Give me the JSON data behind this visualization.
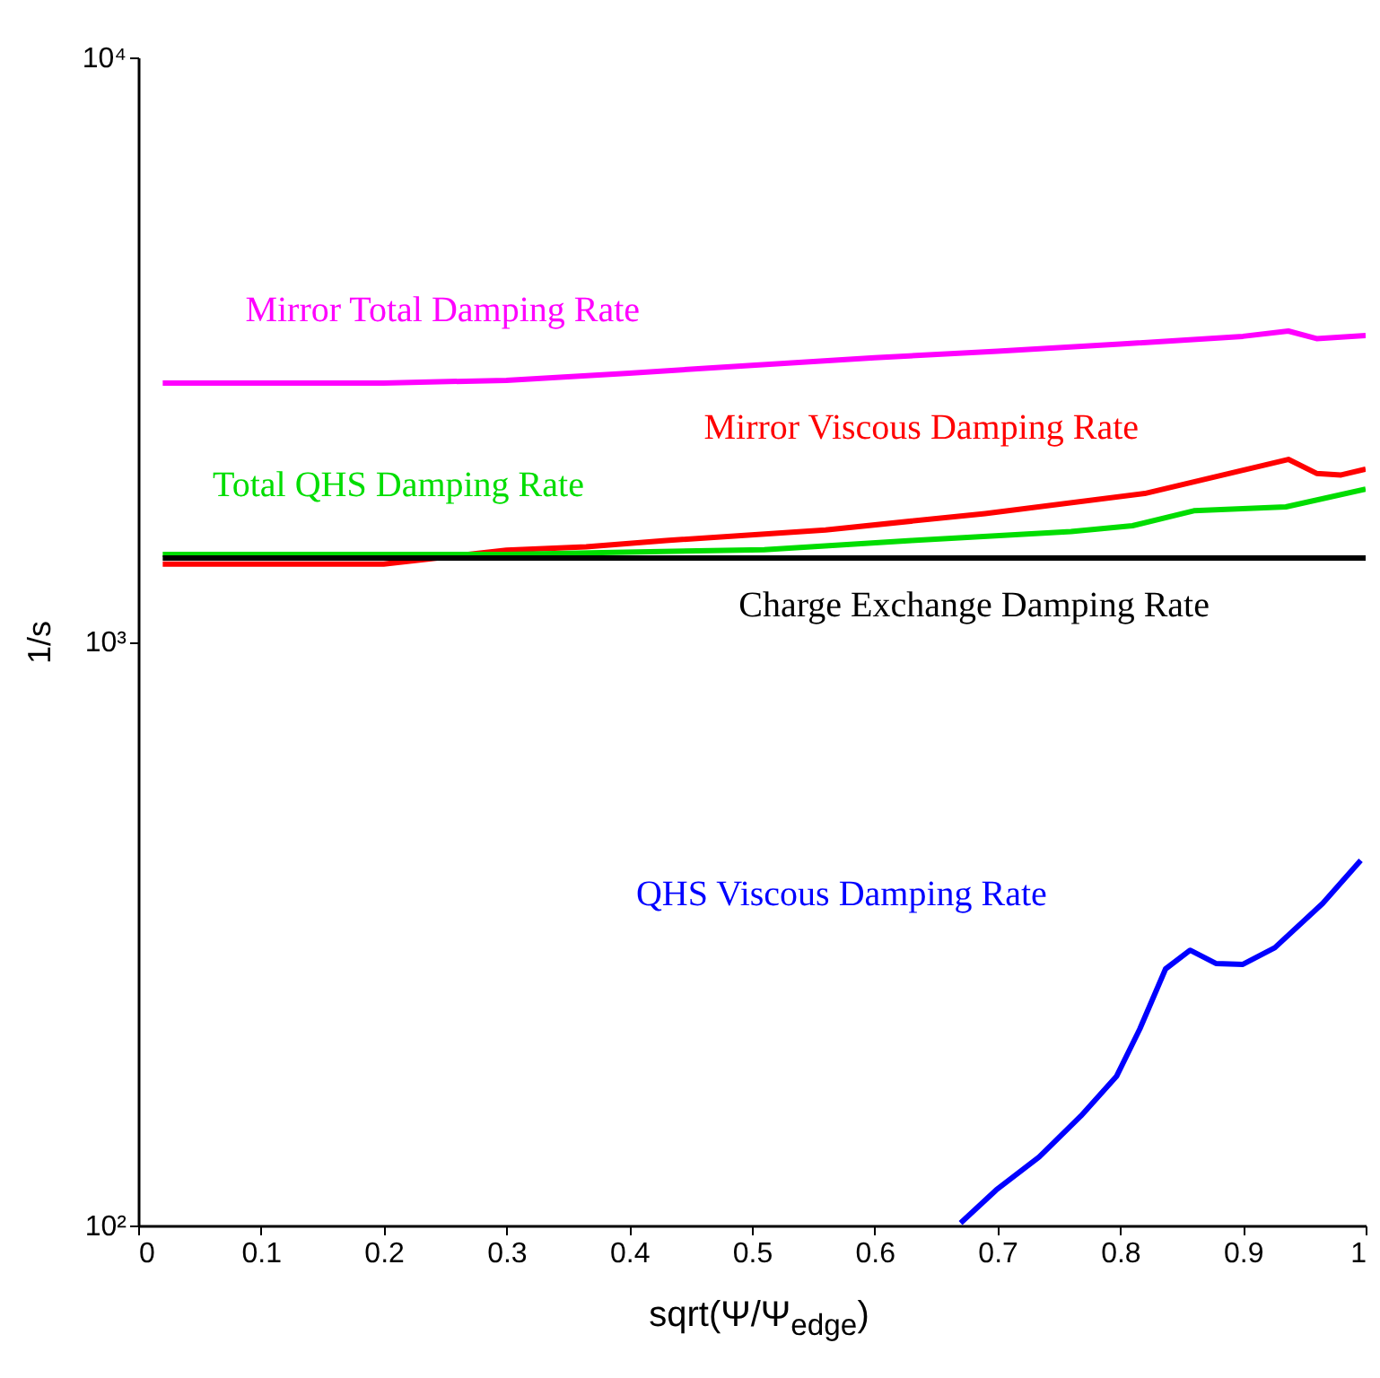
{
  "chart_data": {
    "type": "line",
    "xlabel": "sqrt(Ψ/Ψ$_{edge}$)",
    "ylabel": "1/s",
    "log": "y",
    "grid": false,
    "marker": "none",
    "line_style": "solid",
    "xlim": [
      0,
      1
    ],
    "xticks": [
      0,
      0.1,
      0.2,
      0.3,
      0.4,
      0.5,
      0.6,
      0.7,
      0.8,
      0.9,
      1
    ],
    "ylim": [
      100,
      10000
    ],
    "yticks": [
      {
        "value": 100,
        "label": "10²"
      },
      {
        "value": 1000,
        "label": "10³"
      },
      {
        "value": 10000,
        "label": "10⁴"
      }
    ],
    "series": [
      {
        "name": "Mirror Total Damping Rate",
        "color": "#ff00ff",
        "x": [
          0.02,
          0.2,
          0.3,
          0.4,
          0.5,
          0.6,
          0.7,
          0.8,
          0.9,
          0.937,
          0.96,
          1.0
        ],
        "values": [
          2770,
          2770,
          2800,
          2880,
          2970,
          3060,
          3140,
          3230,
          3330,
          3400,
          3300,
          3340
        ]
      },
      {
        "name": "Mirror Viscous Damping Rate",
        "color": "#ff0000",
        "x": [
          0.02,
          0.2,
          0.3,
          0.365,
          0.43,
          0.56,
          0.69,
          0.82,
          0.937,
          0.96,
          0.98,
          1.0
        ],
        "values": [
          1357,
          1357,
          1433,
          1452,
          1489,
          1552,
          1656,
          1792,
          2050,
          1940,
          1928,
          1972
        ]
      },
      {
        "name": "Total QHS Damping Rate",
        "color": "#00dd00",
        "x": [
          0.02,
          0.3,
          0.51,
          0.63,
          0.76,
          0.81,
          0.86,
          0.935,
          1.0
        ],
        "values": [
          1409,
          1409,
          1436,
          1489,
          1542,
          1578,
          1674,
          1700,
          1823
        ]
      },
      {
        "name": "Charge Exchange Damping Rate",
        "color": "#000000",
        "x": [
          0.02,
          1.0
        ],
        "values": [
          1390,
          1390
        ]
      },
      {
        "name": "QHS Viscous Damping Rate",
        "color": "#0000ff",
        "x": [
          0.67,
          0.699,
          0.734,
          0.768,
          0.797,
          0.816,
          0.837,
          0.857,
          0.878,
          0.9,
          0.926,
          0.965,
          0.996
        ],
        "values": [
          101,
          115,
          131,
          154,
          180,
          217,
          275,
          296,
          281,
          280,
          299,
          356,
          422
        ]
      }
    ]
  }
}
